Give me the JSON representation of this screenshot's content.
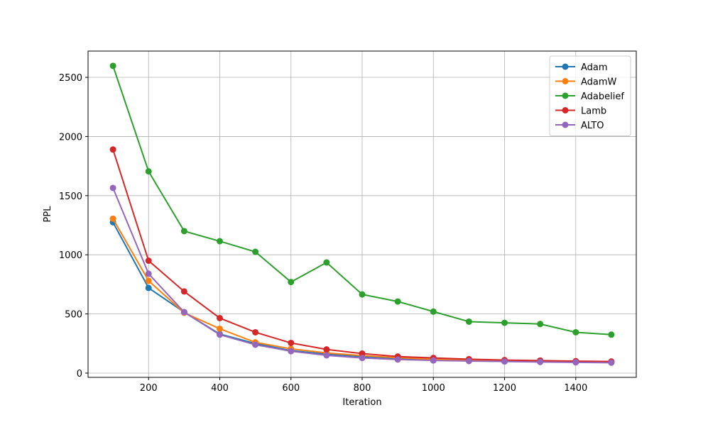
{
  "chart_data": {
    "type": "line",
    "x_label": "Iteration",
    "y_label": "PPL",
    "x": [
      100,
      200,
      300,
      400,
      500,
      600,
      700,
      800,
      900,
      1000,
      1100,
      1200,
      1300,
      1400,
      1500
    ],
    "series": [
      {
        "name": "Adam",
        "color": "#1f77b4",
        "values": [
          1275,
          720,
          515,
          330,
          250,
          190,
          160,
          140,
          125,
          115,
          108,
          102,
          98,
          95,
          92
        ]
      },
      {
        "name": "AdamW",
        "color": "#ff7f0e",
        "values": [
          1305,
          780,
          510,
          375,
          260,
          205,
          170,
          148,
          130,
          118,
          110,
          105,
          100,
          97,
          95
        ]
      },
      {
        "name": "Adabelief",
        "color": "#2ca02c",
        "values": [
          2597,
          1705,
          1200,
          1115,
          1025,
          770,
          935,
          665,
          605,
          520,
          435,
          425,
          415,
          345,
          325
        ]
      },
      {
        "name": "Lamb",
        "color": "#d62728",
        "values": [
          1890,
          950,
          690,
          465,
          345,
          255,
          200,
          165,
          140,
          128,
          118,
          110,
          106,
          101,
          98
        ]
      },
      {
        "name": "ALTO",
        "color": "#9467bd",
        "values": [
          1565,
          840,
          515,
          325,
          240,
          185,
          150,
          128,
          115,
          107,
          102,
          98,
          94,
          91,
          88
        ]
      }
    ],
    "xlim": [
      30,
      1570
    ],
    "xticks": [
      200,
      400,
      600,
      800,
      1000,
      1200,
      1400
    ],
    "ylim": [
      -36,
      2722
    ],
    "yticks": [
      0,
      500,
      1000,
      1500,
      2000,
      2500
    ],
    "grid": true,
    "legend": "upper right"
  }
}
